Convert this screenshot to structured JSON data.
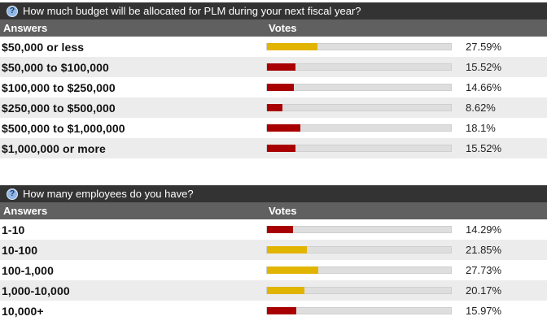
{
  "colors": {
    "header_bg": "#333333",
    "column_header_bg": "#606060",
    "row_alt_bg": "#ececec",
    "bar_track": "#dedede",
    "bar_gold": "#e1b400",
    "bar_red": "#a80000"
  },
  "polls": [
    {
      "icon": "help-icon",
      "question": "How much budget will be allocated for PLM during your next fiscal year?",
      "col_answers": "Answers",
      "col_votes": "Votes",
      "rows": [
        {
          "answer": "$50,000 or less",
          "percent": "27.59%",
          "value": 27.59,
          "color": "#e1b400"
        },
        {
          "answer": "$50,000 to $100,000",
          "percent": "15.52%",
          "value": 15.52,
          "color": "#a80000"
        },
        {
          "answer": "$100,000 to $250,000",
          "percent": "14.66%",
          "value": 14.66,
          "color": "#a80000"
        },
        {
          "answer": "$250,000 to $500,000",
          "percent": "8.62%",
          "value": 8.62,
          "color": "#a80000"
        },
        {
          "answer": "$500,000 to $1,000,000",
          "percent": "18.1%",
          "value": 18.1,
          "color": "#a80000"
        },
        {
          "answer": "$1,000,000 or more",
          "percent": "15.52%",
          "value": 15.52,
          "color": "#a80000"
        }
      ]
    },
    {
      "icon": "help-icon",
      "question": "How many employees do you have?",
      "col_answers": "Answers",
      "col_votes": "Votes",
      "rows": [
        {
          "answer": "1-10",
          "percent": "14.29%",
          "value": 14.29,
          "color": "#a80000"
        },
        {
          "answer": "10-100",
          "percent": "21.85%",
          "value": 21.85,
          "color": "#e1b400"
        },
        {
          "answer": "100-1,000",
          "percent": "27.73%",
          "value": 27.73,
          "color": "#e1b400"
        },
        {
          "answer": "1,000-10,000",
          "percent": "20.17%",
          "value": 20.17,
          "color": "#e1b400"
        },
        {
          "answer": "10,000+",
          "percent": "15.97%",
          "value": 15.97,
          "color": "#a80000"
        }
      ]
    }
  ]
}
